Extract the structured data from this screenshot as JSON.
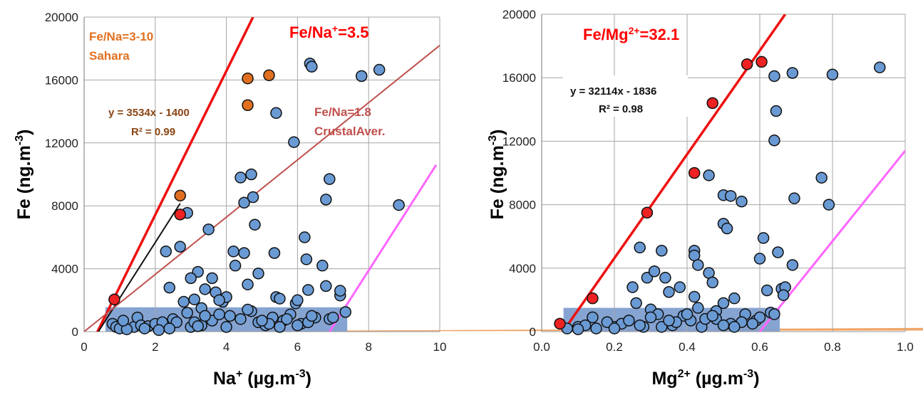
{
  "chart_data": [
    {
      "type": "scatter",
      "xlabel": "Na⁺ (µg.m⁻³)",
      "xlabel_parts": {
        "base": "Na",
        "sup1": "+",
        "unit": " (µg.m",
        "sup2": "-3",
        "close": ")"
      },
      "ylabel": "Fe (ng.m⁻³)",
      "ylabel_parts": {
        "base": "Fe (ng.m",
        "sup": "-3",
        "close": ")"
      },
      "xlim": [
        0,
        10
      ],
      "ylim": [
        0,
        20000
      ],
      "x_ticks": [
        "0",
        "2",
        "4",
        "6",
        "8",
        "10"
      ],
      "y_ticks": [
        "0",
        "4000",
        "8000",
        "12000",
        "16000",
        "20000"
      ],
      "grid": true,
      "sahara_band": {
        "slope_low": 3,
        "slope_high": 10,
        "color": "#f0a060"
      },
      "low_region": {
        "x": [
          0.6,
          7.4
        ],
        "y": [
          0,
          1550
        ]
      },
      "lines": [
        {
          "name": "fe_na_3_5",
          "x": [
            0.3,
            4.75
          ],
          "y": [
            -350,
            20000
          ],
          "color": "#ee1111",
          "width": 3.5
        },
        {
          "name": "fit",
          "x": [
            0.4,
            2.7
          ],
          "y": [
            0,
            8150
          ],
          "color": "#111111",
          "width": 2
        },
        {
          "name": "crustal",
          "x": [
            0,
            10
          ],
          "y": [
            0,
            18200
          ],
          "color": "#c0504d",
          "width": 2
        },
        {
          "name": "right-bound",
          "x": [
            6.9,
            9.9
          ],
          "y": [
            0,
            10600
          ],
          "color": "#ff66ff",
          "width": 3
        }
      ],
      "annotations": {
        "sahara_label_1": "Fe/Na=3-10",
        "sahara_label_2": "Sahara",
        "ratio_label_base": "Fe/Na",
        "ratio_label_sup": "+",
        "ratio_label_rest": "=3.5",
        "equation": "y = 3534x - 1400",
        "r2": "R² = 0.99",
        "crustal_label_1": "Fe/Na=1.8",
        "crustal_label_2": "CrustalAver."
      },
      "colors": {
        "ratio": "#ff0000",
        "sahara": "#e07020",
        "crustal": "#c0504d",
        "fit_text": "#8B4513"
      },
      "highlight_points": {
        "x": [
          0.85,
          2.7,
          2.7,
          4.6,
          4.6,
          5.2
        ],
        "y": [
          2050,
          8650,
          7450,
          16100,
          14400,
          16300
        ],
        "colors": [
          "#ee2222",
          "#e07020",
          "#ee2222",
          "#e07020",
          "#e07020",
          "#e07020"
        ]
      },
      "points": {
        "x": [
          0.8,
          0.9,
          1.4,
          1.5,
          2.3,
          2.4,
          2.7,
          2.9,
          3.1,
          3.2,
          3.5,
          3.6,
          3.7,
          3.9,
          4.0,
          4.2,
          4.25,
          4.4,
          4.5,
          4.7,
          4.75,
          4.8,
          4.9,
          5.4,
          5.35,
          5.4,
          5.5,
          5.9,
          6.2,
          6.25,
          6.3,
          6.35,
          6.4,
          6.7,
          6.8,
          6.8,
          6.9,
          7.2,
          7.2,
          7.35,
          7.8,
          8.3,
          8.85,
          5.95,
          6.0,
          4.5,
          4.6,
          3.8,
          3.4,
          3.3,
          3.0,
          2.8,
          1.0,
          1.2,
          1.6,
          1.8,
          2.0,
          2.2,
          2.5,
          2.6,
          3.0,
          3.3,
          3.6,
          4.1,
          4.4,
          4.9,
          5.1,
          5.3,
          5.6,
          5.8,
          6.1,
          6.5,
          6.9,
          1.1,
          1.7,
          2.9,
          3.4,
          4.0,
          4.7,
          5.2,
          5.7,
          6.3,
          7.0,
          3.1,
          3.8,
          4.6,
          5.0,
          5.5,
          6.0,
          6.4,
          2.1,
          2.4,
          3.2
        ],
        "y": [
          500,
          300,
          300,
          900,
          5100,
          2800,
          5400,
          7550,
          2050,
          3800,
          6500,
          3400,
          2500,
          1900,
          2200,
          5100,
          4200,
          9800,
          8200,
          10000,
          8550,
          6800,
          3700,
          13900,
          5000,
          2200,
          2100,
          12050,
          6000,
          4600,
          2650,
          17050,
          16850,
          4200,
          8400,
          2900,
          9700,
          2300,
          2600,
          1250,
          16250,
          16650,
          8050,
          1800,
          2000,
          5000,
          3000,
          2000,
          2700,
          1500,
          3400,
          1900,
          200,
          150,
          400,
          350,
          500,
          600,
          800,
          600,
          300,
          400,
          700,
          1000,
          800,
          600,
          400,
          900,
          700,
          1100,
          500,
          900,
          800,
          700,
          200,
          1200,
          1000,
          300,
          1300,
          500,
          800,
          600,
          900,
          600,
          1100,
          1400,
          700,
          300,
          400,
          1000,
          100,
          200,
          350
        ]
      }
    },
    {
      "type": "scatter",
      "xlabel": "Mg²⁺ (µg.m⁻³)",
      "xlabel_parts": {
        "base": "Mg",
        "sup1": "2+",
        "unit": " (µg.m",
        "sup2": "-3",
        "close": ")"
      },
      "ylabel": "Fe (ng.m⁻³)",
      "ylabel_parts": {
        "base": "Fe (ng.m",
        "sup": "-3",
        "close": ")"
      },
      "xlim": [
        0,
        1.0
      ],
      "ylim": [
        0,
        20000
      ],
      "x_ticks": [
        "0.0",
        "0.2",
        "0.4",
        "0.6",
        "0.8",
        "1.0"
      ],
      "y_ticks": [
        "0",
        "4000",
        "8000",
        "12000",
        "16000",
        "20000"
      ],
      "grid": true,
      "low_region": {
        "x": [
          0.06,
          0.655
        ],
        "y": [
          0,
          1500
        ]
      },
      "lines": [
        {
          "name": "fe_mg_32_1",
          "x": [
            0.04,
            0.67
          ],
          "y": [
            -600,
            20000
          ],
          "color": "#ee1111",
          "width": 3.5
        },
        {
          "name": "right-bound",
          "x": [
            0.6,
            1.0
          ],
          "y": [
            0,
            11400
          ],
          "color": "#ff66ff",
          "width": 3
        }
      ],
      "annotations": {
        "ratio_label_base": "Fe/Mg",
        "ratio_label_sup": "2+",
        "ratio_label_rest": "=32.1",
        "equation": "y = 32114x - 1836",
        "r2": "R² = 0.98"
      },
      "colors": {
        "ratio": "#ff0000"
      },
      "highlight_points": {
        "x": [
          0.05,
          0.14,
          0.29,
          0.42,
          0.47,
          0.565,
          0.605
        ],
        "y": [
          500,
          2100,
          7500,
          10000,
          14400,
          16850,
          17000
        ],
        "colors": [
          "#ee2222",
          "#ee2222",
          "#ee2222",
          "#ee2222",
          "#ee2222",
          "#ee2222",
          "#ee2222"
        ]
      },
      "points": {
        "x": [
          0.07,
          0.1,
          0.14,
          0.2,
          0.25,
          0.27,
          0.29,
          0.31,
          0.33,
          0.34,
          0.35,
          0.38,
          0.42,
          0.42,
          0.42,
          0.43,
          0.46,
          0.46,
          0.47,
          0.5,
          0.5,
          0.51,
          0.52,
          0.55,
          0.6,
          0.61,
          0.62,
          0.64,
          0.64,
          0.645,
          0.65,
          0.66,
          0.67,
          0.69,
          0.695,
          0.77,
          0.79,
          0.8,
          0.93,
          0.69,
          0.665,
          0.53,
          0.5,
          0.48,
          0.43,
          0.3,
          0.32,
          0.26,
          0.12,
          0.15,
          0.18,
          0.22,
          0.24,
          0.28,
          0.3,
          0.36,
          0.39,
          0.41,
          0.44,
          0.48,
          0.52,
          0.56,
          0.59,
          0.63,
          0.1,
          0.2,
          0.33,
          0.37,
          0.45,
          0.5,
          0.55,
          0.6,
          0.27,
          0.35,
          0.4,
          0.47,
          0.53,
          0.58,
          0.64
        ],
        "y": [
          200,
          300,
          900,
          300,
          2800,
          5300,
          3400,
          3800,
          5100,
          3400,
          2500,
          2800,
          5100,
          4800,
          2200,
          4200,
          9850,
          3700,
          3100,
          8600,
          6800,
          6500,
          8550,
          8200,
          4600,
          5900,
          2600,
          16100,
          12050,
          13900,
          5000,
          2700,
          2800,
          16300,
          8400,
          9700,
          8000,
          16200,
          16650,
          4200,
          2300,
          2100,
          1800,
          1300,
          1500,
          1400,
          1100,
          1800,
          400,
          200,
          600,
          500,
          700,
          300,
          900,
          400,
          1000,
          700,
          300,
          800,
          500,
          1100,
          700,
          1200,
          150,
          200,
          300,
          600,
          800,
          400,
          600,
          900,
          400,
          700,
          1100,
          1000,
          300,
          500,
          1100
        ]
      }
    }
  ]
}
